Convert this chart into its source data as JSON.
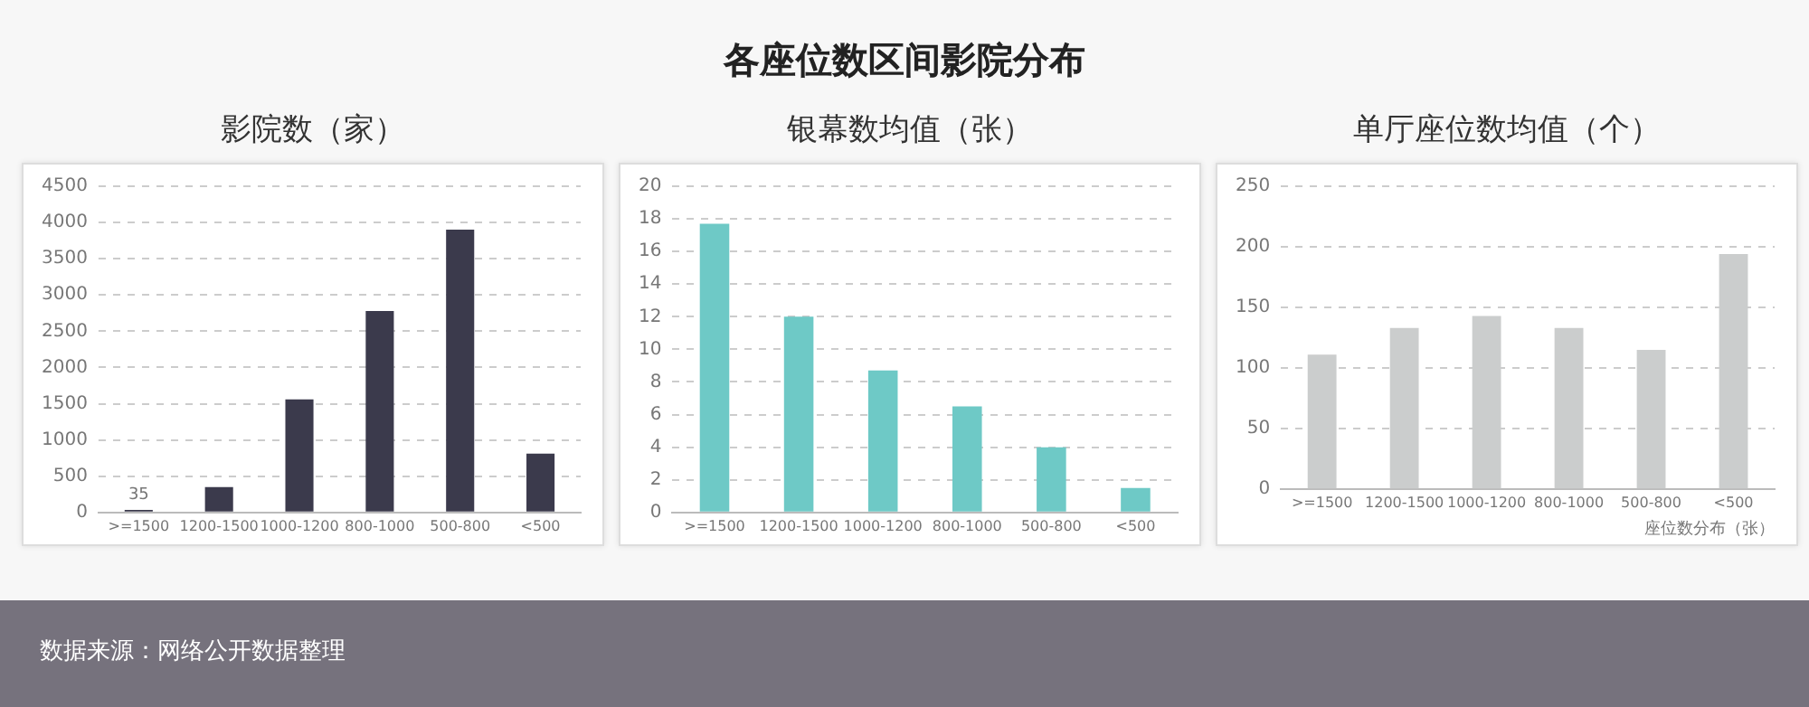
{
  "chart_data": [
    {
      "type": "other",
      "title": "各座位数区间影院分布",
      "annotations": [
        "数据来源：网络公开数据整理"
      ]
    },
    {
      "type": "bar",
      "title": "影院数（家）",
      "categories": [
        ">=1500",
        "1200-1500",
        "1000-1200",
        "800-1000",
        "500-800",
        "<500"
      ],
      "values": [
        35,
        350,
        1560,
        2780,
        3900,
        810
      ],
      "value_labels": [
        "35",
        null,
        null,
        null,
        null,
        null
      ],
      "color": "#3b3a4c",
      "ylim": [
        0,
        4500
      ],
      "yticks": [
        0,
        500,
        1000,
        1500,
        2000,
        2500,
        3000,
        3500,
        4000,
        4500
      ],
      "grid": "y"
    },
    {
      "type": "bar",
      "title": "银幕数均值（张）",
      "categories": [
        ">=1500",
        "1200-1500",
        "1000-1200",
        "800-1000",
        "500-800",
        "<500"
      ],
      "values": [
        17.7,
        12.0,
        8.7,
        6.5,
        4.0,
        1.5
      ],
      "color": "#6ec9c6",
      "ylim": [
        0,
        20
      ],
      "yticks": [
        0,
        2,
        4,
        6,
        8,
        10,
        12,
        14,
        16,
        18,
        20
      ],
      "grid": "y"
    },
    {
      "type": "bar",
      "title": "单厅座位数均值（个）",
      "xlabel": "座位数分布（张）",
      "categories": [
        ">=1500",
        "1200-1500",
        "1000-1200",
        "800-1000",
        "500-800",
        "<500"
      ],
      "values": [
        111,
        133,
        143,
        133,
        115,
        194
      ],
      "color": "#cbcdcd",
      "ylim": [
        0,
        250
      ],
      "yticks": [
        0,
        50,
        100,
        150,
        200,
        250
      ],
      "grid": "y"
    }
  ]
}
